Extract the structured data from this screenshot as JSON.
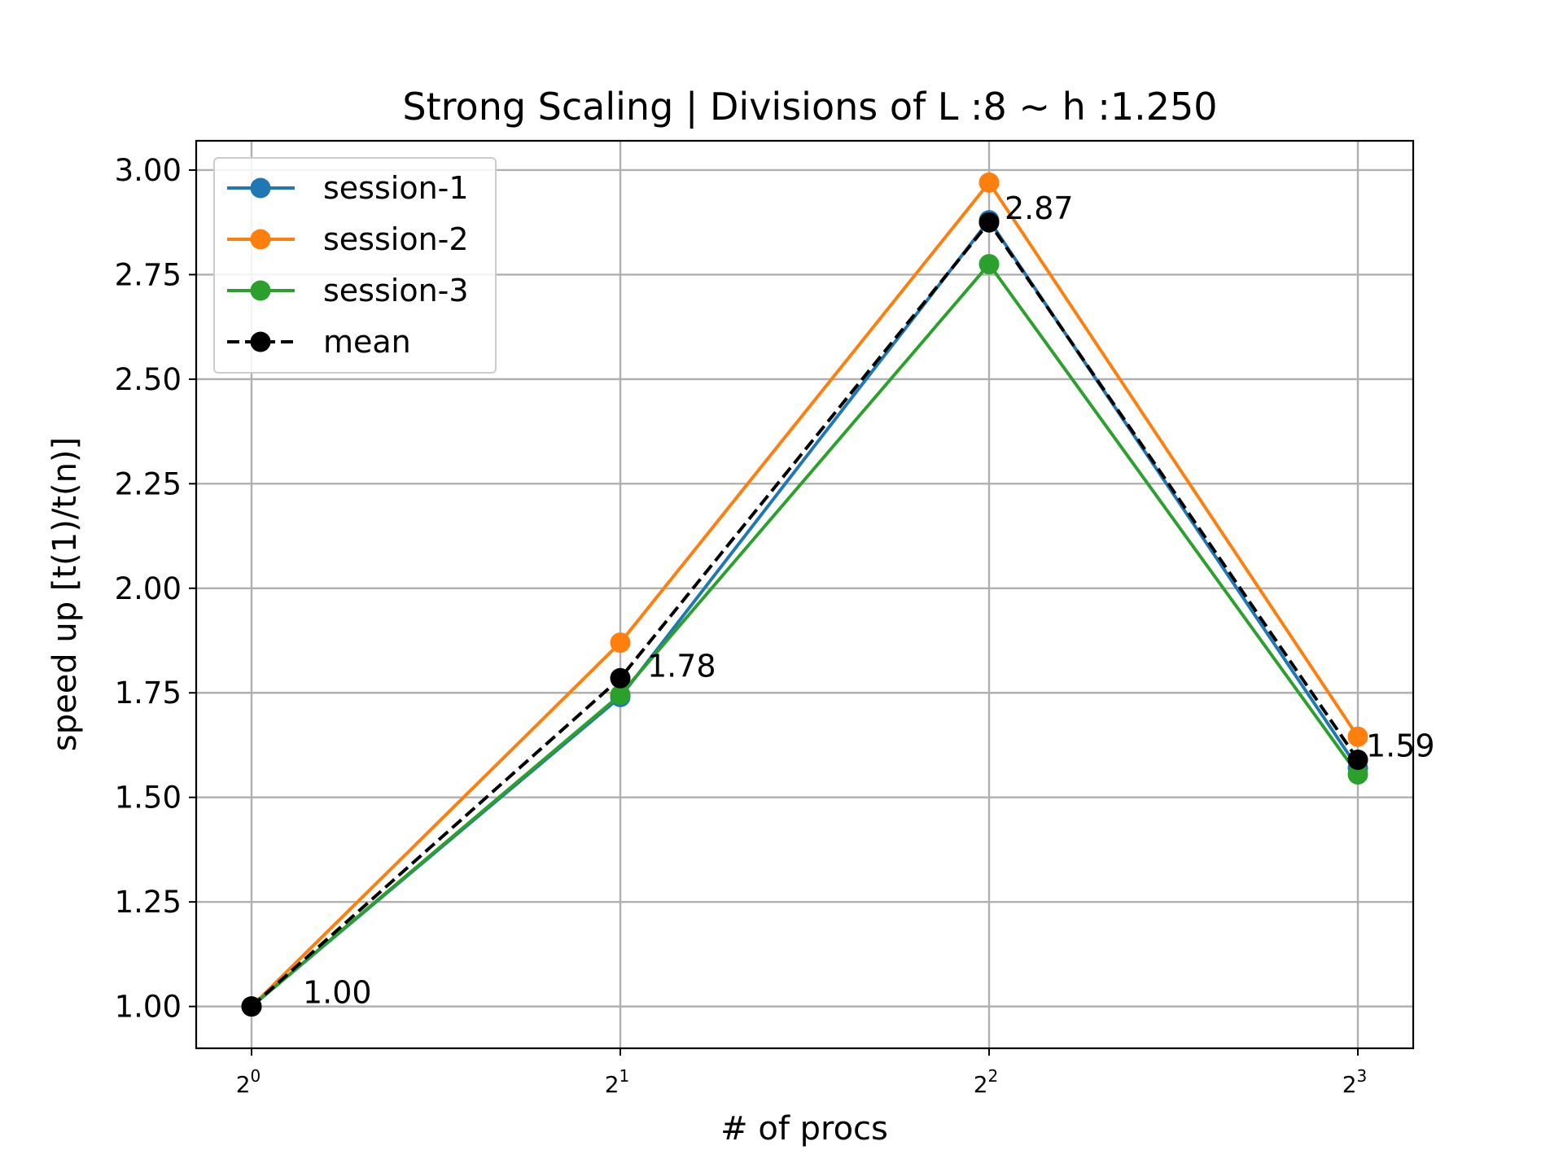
{
  "chart_data": {
    "type": "line",
    "title": "Strong Scaling | Divisions of L :8 ~ h :1.250",
    "xlabel": "# of procs",
    "ylabel": "speed up [t(1)/t(n)]",
    "x": [
      1,
      2,
      4,
      8
    ],
    "x_scale": "log2",
    "x_tick_labels": [
      {
        "base": "2",
        "exp": "0"
      },
      {
        "base": "2",
        "exp": "1"
      },
      {
        "base": "2",
        "exp": "2"
      },
      {
        "base": "2",
        "exp": "3"
      }
    ],
    "y_ticks": [
      "1.00",
      "1.25",
      "1.50",
      "1.75",
      "2.00",
      "2.25",
      "2.50",
      "2.75",
      "3.00"
    ],
    "y_tick_values": [
      1.0,
      1.25,
      1.5,
      1.75,
      2.0,
      2.25,
      2.5,
      2.75,
      3.0
    ],
    "ylim": [
      0.9,
      3.07
    ],
    "grid": true,
    "legend_position": "top-left",
    "series": [
      {
        "name": "session-1",
        "color": "#1f77b4",
        "style": "solid",
        "values": [
          1.0,
          1.74,
          2.88,
          1.57
        ]
      },
      {
        "name": "session-2",
        "color": "#ff7f0e",
        "style": "solid",
        "values": [
          1.0,
          1.87,
          2.97,
          1.645
        ]
      },
      {
        "name": "session-3",
        "color": "#2ca02c",
        "style": "solid",
        "values": [
          1.0,
          1.745,
          2.775,
          1.555
        ]
      },
      {
        "name": "mean",
        "color": "#000000",
        "style": "dashed",
        "values": [
          1.0,
          1.785,
          2.875,
          1.59
        ]
      }
    ],
    "annotations": [
      "1.00",
      "1.78",
      "2.87",
      "1.59"
    ]
  }
}
